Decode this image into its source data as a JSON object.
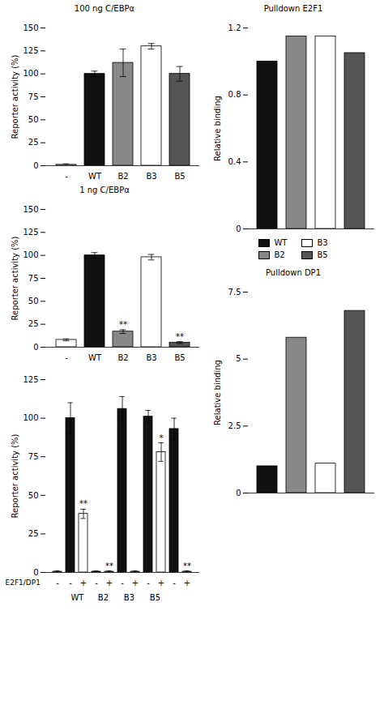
{
  "chart_data": [
    {
      "type": "bar",
      "title": "100 ng C/EBPα",
      "categories": [
        "-",
        "WT",
        "B2",
        "B3",
        "B5"
      ],
      "values": [
        1,
        100,
        112,
        130,
        100
      ],
      "errors": [
        1,
        3,
        15,
        3,
        8
      ],
      "colors": [
        "white",
        "#111111",
        "#888888",
        "white",
        "#555555"
      ],
      "ylabel": "Reporter activity (%)",
      "ylim": [
        0,
        150
      ],
      "yticks": [
        0,
        25,
        50,
        75,
        100,
        125,
        150
      ]
    },
    {
      "type": "bar",
      "title": "1 ng C/EBPα",
      "categories": [
        "-",
        "WT",
        "B2",
        "B3",
        "B5"
      ],
      "values": [
        8,
        100,
        17,
        98,
        5
      ],
      "errors": [
        1,
        3,
        2,
        3,
        1
      ],
      "sig_labels": [
        null,
        null,
        "**",
        null,
        "**"
      ],
      "colors": [
        "white",
        "#111111",
        "#888888",
        "white",
        "#555555"
      ],
      "ylabel": "Reporter activity (%)",
      "ylim": [
        0,
        150
      ],
      "yticks": [
        0,
        25,
        50,
        75,
        100,
        125,
        150
      ]
    },
    {
      "type": "bar",
      "xlabel": "E2F1/DP1",
      "categories": [
        "-",
        "-",
        "+",
        "-",
        "+",
        "-",
        "+",
        "-",
        "+",
        "-",
        "+"
      ],
      "groups": [
        null,
        "WT",
        "WT",
        "B2",
        "B2",
        "B3",
        "B3",
        "B5",
        "B5",
        null,
        null
      ],
      "values": [
        0.5,
        100,
        38,
        0.5,
        0.5,
        106,
        0.5,
        101,
        78,
        93,
        0.5
      ],
      "errors": [
        0.5,
        10,
        3,
        0.5,
        0.5,
        8,
        0.5,
        4,
        6,
        7,
        0.5
      ],
      "sig_labels": [
        null,
        null,
        "**",
        null,
        "**",
        null,
        null,
        null,
        "*",
        null,
        "**"
      ],
      "colors": [
        "white",
        "#111111",
        "white",
        "#111111",
        "white",
        "#111111",
        "white",
        "#111111",
        "white",
        "#111111",
        "white"
      ],
      "ylabel": "Reporter activity (%)",
      "ylim": [
        0,
        125
      ],
      "yticks": [
        0,
        25,
        50,
        75,
        100,
        125
      ]
    },
    {
      "type": "bar",
      "title": "Pulldown E2F1",
      "categories": [
        "WT",
        "B2",
        "B3",
        "B5"
      ],
      "values": [
        1.0,
        1.15,
        1.15,
        1.05
      ],
      "colors": [
        "#111111",
        "#888888",
        "white",
        "#555555"
      ],
      "ylabel": "Relative binding",
      "ylim": [
        0,
        1.2
      ],
      "yticks": [
        0,
        0.4,
        0.8,
        1.2
      ],
      "tick_labels": "y",
      "legend": "bottom"
    },
    {
      "type": "bar",
      "title": "Pulldown DP1",
      "categories": [
        "WT",
        "B2",
        "B3",
        "B5"
      ],
      "values": [
        1.0,
        5.8,
        1.1,
        6.8
      ],
      "colors": [
        "#111111",
        "#888888",
        "white",
        "#555555"
      ],
      "ylabel": "Relative binding",
      "ylim": [
        0,
        7.5
      ],
      "yticks": [
        0,
        2.5,
        5.0,
        7.5
      ],
      "tick_labels": "y"
    }
  ]
}
